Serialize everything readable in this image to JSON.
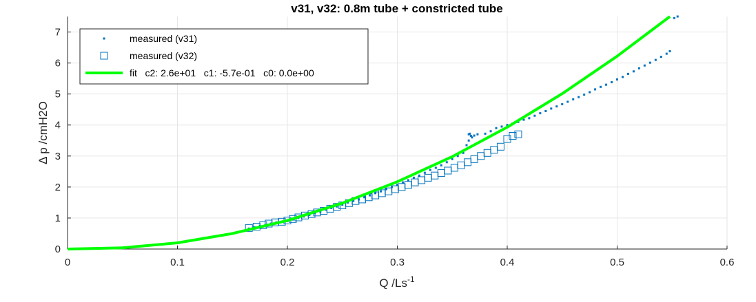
{
  "chart_data": {
    "type": "scatter",
    "title": "v31, v32: 0.8m tube + constricted tube",
    "xlabel": "Q /Ls",
    "xlabel_sup": "-1",
    "ylabel": "Δ p /cmH2O",
    "xlim": [
      0,
      0.6
    ],
    "ylim": [
      0,
      7.5
    ],
    "xticks": [
      "0",
      "0.1",
      "0.2",
      "0.3",
      "0.4",
      "0.5",
      "0.6"
    ],
    "yticks": [
      "0",
      "1",
      "2",
      "3",
      "4",
      "5",
      "6",
      "7"
    ],
    "grid": true,
    "legend_position": "top-left",
    "series": [
      {
        "name": "measured (v31)",
        "marker": "point",
        "color": "#0072BD",
        "x": [
          0.165,
          0.17,
          0.175,
          0.18,
          0.185,
          0.19,
          0.195,
          0.2,
          0.205,
          0.21,
          0.215,
          0.22,
          0.225,
          0.23,
          0.235,
          0.24,
          0.245,
          0.25,
          0.255,
          0.26,
          0.265,
          0.27,
          0.275,
          0.28,
          0.285,
          0.29,
          0.295,
          0.3,
          0.305,
          0.31,
          0.315,
          0.32,
          0.325,
          0.33,
          0.335,
          0.34,
          0.345,
          0.35,
          0.355,
          0.36,
          0.363,
          0.365,
          0.365,
          0.366,
          0.367,
          0.368,
          0.37,
          0.373,
          0.38,
          0.385,
          0.39,
          0.395,
          0.4,
          0.405,
          0.41,
          0.415,
          0.42,
          0.425,
          0.43,
          0.435,
          0.44,
          0.445,
          0.45,
          0.455,
          0.46,
          0.465,
          0.47,
          0.475,
          0.48,
          0.485,
          0.49,
          0.495,
          0.5,
          0.505,
          0.51,
          0.515,
          0.52,
          0.525,
          0.53,
          0.535,
          0.54,
          0.545,
          0.548,
          0.552,
          0.555
        ],
        "y": [
          0.66,
          0.7,
          0.74,
          0.78,
          0.82,
          0.86,
          0.88,
          0.9,
          0.95,
          1.0,
          1.05,
          1.1,
          1.16,
          1.2,
          1.27,
          1.32,
          1.37,
          1.43,
          1.5,
          1.55,
          1.6,
          1.67,
          1.73,
          1.8,
          1.86,
          1.93,
          2.0,
          2.07,
          2.15,
          2.22,
          2.3,
          2.37,
          2.46,
          2.55,
          2.62,
          2.7,
          2.8,
          2.9,
          3.0,
          3.1,
          3.35,
          3.5,
          3.7,
          3.72,
          3.65,
          3.6,
          3.66,
          3.7,
          3.72,
          3.8,
          3.9,
          3.95,
          4.0,
          4.05,
          4.1,
          4.17,
          4.22,
          4.3,
          4.38,
          4.45,
          4.53,
          4.6,
          4.67,
          4.75,
          4.83,
          4.9,
          4.98,
          5.06,
          5.15,
          5.23,
          5.3,
          5.38,
          5.47,
          5.55,
          5.65,
          5.73,
          5.83,
          5.92,
          6.01,
          6.1,
          6.2,
          6.3,
          6.38,
          7.45,
          7.5
        ]
      },
      {
        "name": "measured (v32)",
        "marker": "square",
        "color": "#0072BD",
        "x": [
          0.165,
          0.172,
          0.178,
          0.183,
          0.189,
          0.195,
          0.2,
          0.205,
          0.21,
          0.216,
          0.222,
          0.227,
          0.233,
          0.239,
          0.245,
          0.25,
          0.256,
          0.262,
          0.268,
          0.274,
          0.28,
          0.286,
          0.292,
          0.298,
          0.304,
          0.31,
          0.316,
          0.322,
          0.328,
          0.334,
          0.34,
          0.346,
          0.352,
          0.358,
          0.364,
          0.37,
          0.376,
          0.382,
          0.388,
          0.394,
          0.4,
          0.405,
          0.41
        ],
        "y": [
          0.68,
          0.72,
          0.77,
          0.82,
          0.86,
          0.88,
          0.92,
          0.97,
          1.02,
          1.08,
          1.13,
          1.18,
          1.23,
          1.3,
          1.36,
          1.41,
          1.48,
          1.55,
          1.6,
          1.67,
          1.73,
          1.8,
          1.86,
          1.93,
          2.0,
          2.07,
          2.15,
          2.22,
          2.3,
          2.37,
          2.45,
          2.53,
          2.62,
          2.7,
          2.8,
          2.9,
          3.0,
          3.1,
          3.2,
          3.3,
          3.55,
          3.65,
          3.7
        ]
      },
      {
        "name": "fit   c2: 2.6e+01   c1: -5.7e-01   c0: 0.0e+00",
        "marker": "line",
        "color": "#00FF00",
        "x": [
          0,
          0.05,
          0.1,
          0.15,
          0.2,
          0.25,
          0.3,
          0.35,
          0.4,
          0.45,
          0.5,
          0.548
        ],
        "y": [
          0,
          0.04,
          0.2,
          0.5,
          0.92,
          1.48,
          2.17,
          2.98,
          3.93,
          5.01,
          6.22,
          7.5
        ]
      }
    ]
  }
}
